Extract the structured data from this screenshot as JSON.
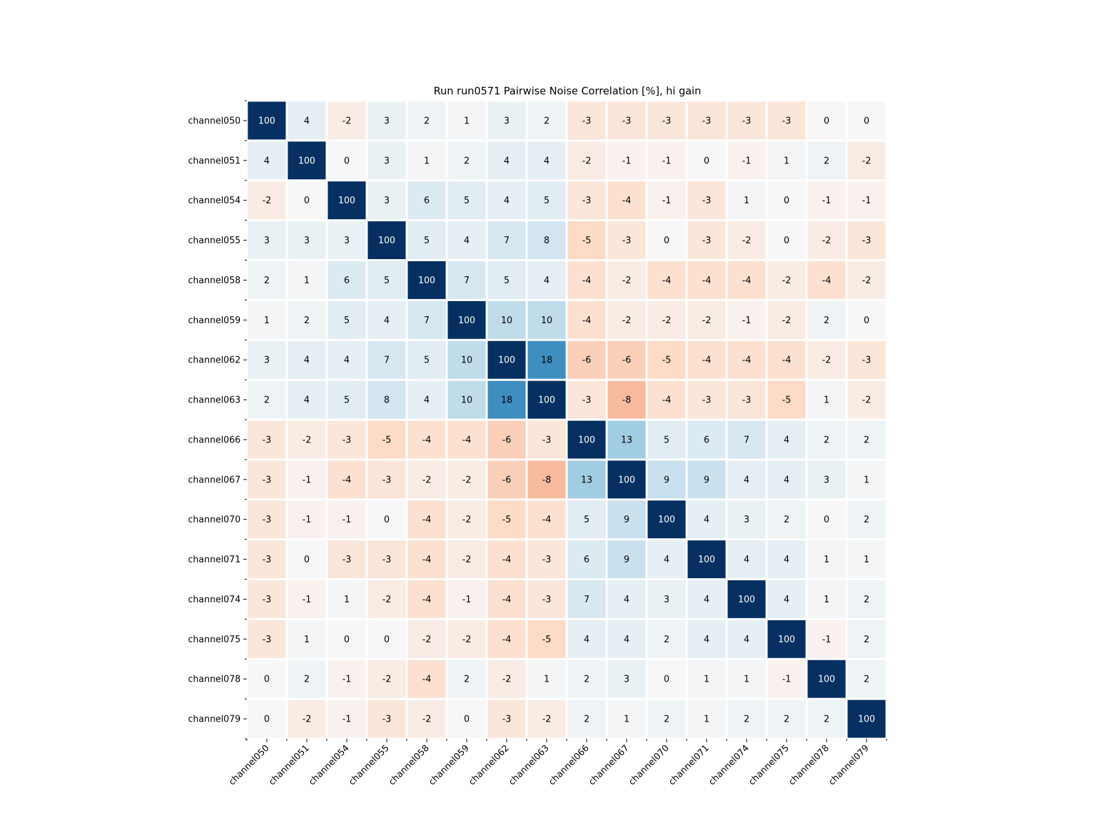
{
  "chart_data": {
    "type": "heatmap",
    "title": "Run run0571 Pairwise Noise Correlation [%], hi gain",
    "xlabel": "",
    "ylabel": "",
    "rows": [
      "channel050",
      "channel051",
      "channel054",
      "channel055",
      "channel058",
      "channel059",
      "channel062",
      "channel063",
      "channel066",
      "channel067",
      "channel070",
      "channel071",
      "channel074",
      "channel075",
      "channel078",
      "channel079"
    ],
    "columns": [
      "channel050",
      "channel051",
      "channel054",
      "channel055",
      "channel058",
      "channel059",
      "channel062",
      "channel063",
      "channel066",
      "channel067",
      "channel070",
      "channel071",
      "channel074",
      "channel075",
      "channel078",
      "channel079"
    ],
    "values": [
      [
        100,
        4,
        -2,
        3,
        2,
        1,
        3,
        2,
        -3,
        -3,
        -3,
        -3,
        -3,
        -3,
        0,
        0
      ],
      [
        4,
        100,
        0,
        3,
        1,
        2,
        4,
        4,
        -2,
        -1,
        -1,
        0,
        -1,
        1,
        2,
        -2
      ],
      [
        -2,
        0,
        100,
        3,
        6,
        5,
        4,
        5,
        -3,
        -4,
        -1,
        -3,
        1,
        0,
        -1,
        -1
      ],
      [
        3,
        3,
        3,
        100,
        5,
        4,
        7,
        8,
        -5,
        -3,
        0,
        -3,
        -2,
        0,
        -2,
        -3
      ],
      [
        2,
        1,
        6,
        5,
        100,
        7,
        5,
        4,
        -4,
        -2,
        -4,
        -4,
        -4,
        -2,
        -4,
        -2
      ],
      [
        1,
        2,
        5,
        4,
        7,
        100,
        10,
        10,
        -4,
        -2,
        -2,
        -2,
        -1,
        -2,
        2,
        0
      ],
      [
        3,
        4,
        4,
        7,
        5,
        10,
        100,
        18,
        -6,
        -6,
        -5,
        -4,
        -4,
        -4,
        -2,
        -3
      ],
      [
        2,
        4,
        5,
        8,
        4,
        10,
        18,
        100,
        -3,
        -8,
        -4,
        -3,
        -3,
        -5,
        1,
        -2
      ],
      [
        -3,
        -2,
        -3,
        -5,
        -4,
        -4,
        -6,
        -3,
        100,
        13,
        5,
        6,
        7,
        4,
        2,
        2
      ],
      [
        -3,
        -1,
        -4,
        -3,
        -2,
        -2,
        -6,
        -8,
        13,
        100,
        9,
        9,
        4,
        4,
        3,
        1
      ],
      [
        -3,
        -1,
        -1,
        0,
        -4,
        -2,
        -5,
        -4,
        5,
        9,
        100,
        4,
        3,
        2,
        0,
        2
      ],
      [
        -3,
        0,
        -3,
        -3,
        -4,
        -2,
        -4,
        -3,
        6,
        9,
        4,
        100,
        4,
        4,
        1,
        1
      ],
      [
        -3,
        -1,
        1,
        -2,
        -4,
        -1,
        -4,
        -3,
        7,
        4,
        3,
        4,
        100,
        4,
        1,
        2
      ],
      [
        -3,
        1,
        0,
        0,
        -2,
        -2,
        -4,
        -5,
        4,
        4,
        2,
        4,
        4,
        100,
        -1,
        2
      ],
      [
        0,
        2,
        -1,
        -2,
        -4,
        2,
        -2,
        1,
        2,
        3,
        0,
        1,
        1,
        -1,
        100,
        2
      ],
      [
        0,
        -2,
        -1,
        -3,
        -2,
        0,
        -3,
        -2,
        2,
        1,
        2,
        1,
        2,
        2,
        2,
        100
      ]
    ],
    "colormap": "RdBu_r",
    "colors": {
      "saturated_high": "#053061",
      "strong_blue": "#2166ac",
      "mid_blue": "#4393c3",
      "light_blue": "#92c5de",
      "pale_blue": "#d1e5f0",
      "neutral": "#f7f7f7",
      "pale_red": "#fddbc7",
      "light_red": "#f4a582",
      "grid_line": "#ffffff"
    },
    "color_scale_max": 20,
    "annotated": true,
    "grid": false,
    "legend": "none"
  }
}
